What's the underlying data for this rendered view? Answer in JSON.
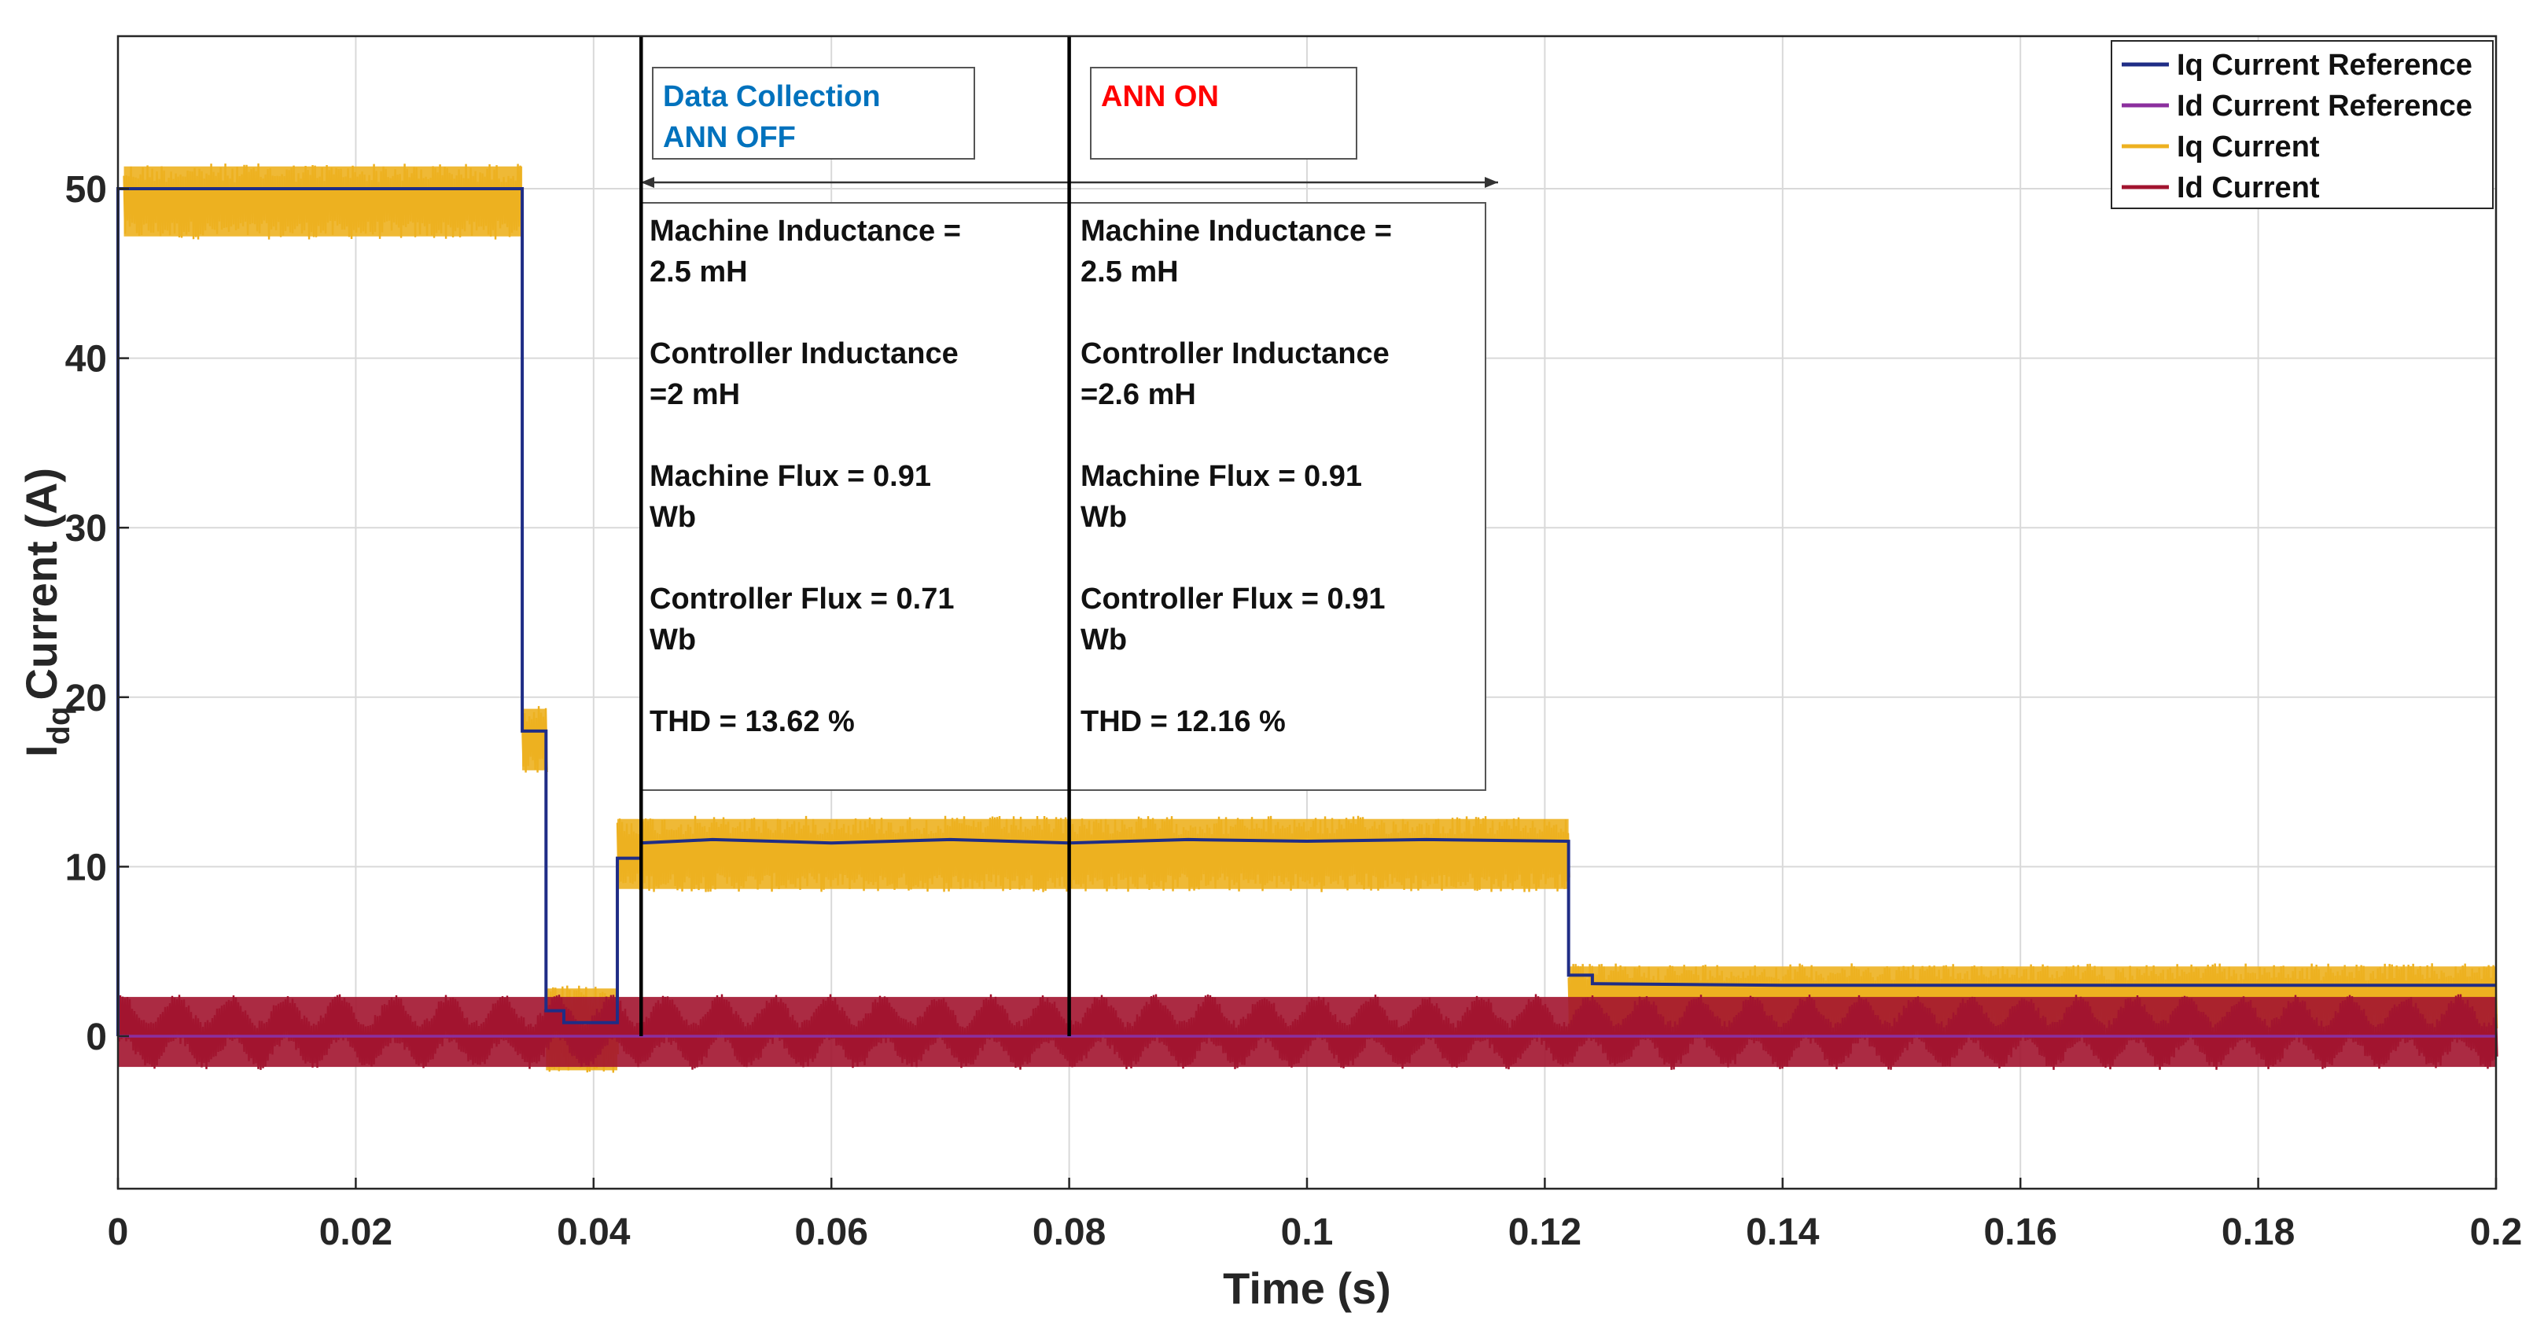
{
  "chart_data": {
    "type": "line",
    "title": "",
    "xlabel": "Time (s)",
    "ylabel": {
      "main": "I",
      "sub": "dq",
      "rest": "Current (A)"
    },
    "xlim": [
      0,
      0.2
    ],
    "ylim": [
      -9,
      59
    ],
    "xticks": [
      0,
      0.02,
      0.04,
      0.06,
      0.08,
      0.1,
      0.12,
      0.14,
      0.16,
      0.18,
      0.2
    ],
    "xtick_labels": [
      "0",
      "0.02",
      "0.04",
      "0.06",
      "0.08",
      "0.1",
      "0.12",
      "0.14",
      "0.16",
      "0.18",
      "0.2"
    ],
    "yticks": [
      0,
      10,
      20,
      30,
      40,
      50
    ],
    "ytick_labels": [
      "0",
      "10",
      "20",
      "30",
      "40",
      "50"
    ],
    "grid": true,
    "legend_position": "top-right",
    "colors": {
      "iq_ref": "#1F2D86",
      "id_ref": "#8B2F9E",
      "iq": "#EDB120",
      "id": "#A2142F",
      "annotation_blue": "#0072BD",
      "annotation_red": "#FF0000"
    },
    "series": [
      {
        "name": "Iq Current Reference",
        "kind": "step",
        "points": [
          [
            0,
            0
          ],
          [
            0,
            50
          ],
          [
            0.034,
            50
          ],
          [
            0.034,
            18
          ],
          [
            0.036,
            18
          ],
          [
            0.036,
            1.5
          ],
          [
            0.0375,
            1.5
          ],
          [
            0.0375,
            0.8
          ],
          [
            0.042,
            0.8
          ],
          [
            0.042,
            10.5
          ],
          [
            0.044,
            10.5
          ],
          [
            0.044,
            11.4
          ],
          [
            0.05,
            11.6
          ],
          [
            0.06,
            11.4
          ],
          [
            0.07,
            11.6
          ],
          [
            0.08,
            11.4
          ],
          [
            0.09,
            11.6
          ],
          [
            0.1,
            11.5
          ],
          [
            0.11,
            11.6
          ],
          [
            0.122,
            11.5
          ],
          [
            0.122,
            3.6
          ],
          [
            0.124,
            3.6
          ],
          [
            0.124,
            3.1
          ],
          [
            0.14,
            3.0
          ],
          [
            0.2,
            3.0
          ]
        ]
      },
      {
        "name": "Id Current Reference",
        "kind": "step",
        "points": [
          [
            0,
            0
          ],
          [
            0.2,
            0
          ]
        ]
      },
      {
        "name": "Iq Current",
        "kind": "band",
        "segments": [
          {
            "start": 0.0005,
            "end": 0.034,
            "low": 47.0,
            "high": 51.5
          },
          {
            "start": 0.034,
            "end": 0.036,
            "low": 15.5,
            "high": 19.5
          },
          {
            "start": 0.036,
            "end": 0.042,
            "low": -2.2,
            "high": 3.0
          },
          {
            "start": 0.042,
            "end": 0.122,
            "low": 8.5,
            "high": 13.0
          },
          {
            "start": 0.122,
            "end": 0.2,
            "low": 0.2,
            "high": 4.3
          }
        ]
      },
      {
        "name": "Id Current",
        "kind": "band",
        "segments": [
          {
            "start": 0,
            "end": 0.2,
            "low": -2.0,
            "high": 2.5
          }
        ]
      }
    ],
    "markers": [
      0.044,
      0.08
    ],
    "annotations": {
      "box_off": {
        "line1": "Data Collection",
        "line2": "ANN OFF"
      },
      "box_on": {
        "line1": "ANN ON"
      },
      "params_off": [
        "Machine Inductance =",
        "2.5 mH",
        "",
        "Controller Inductance",
        "=2 mH",
        "",
        "Machine Flux = 0.91",
        "Wb",
        "",
        "Controller Flux = 0.71",
        "Wb",
        "",
        "THD  = 13.62 %"
      ],
      "params_on": [
        "Machine Inductance =",
        "2.5 mH",
        "",
        "Controller Inductance",
        "=2.6 mH",
        "",
        "Machine Flux = 0.91",
        "Wb",
        "",
        "Controller Flux = 0.91",
        "Wb",
        "",
        "THD  = 12.16 %"
      ]
    }
  }
}
